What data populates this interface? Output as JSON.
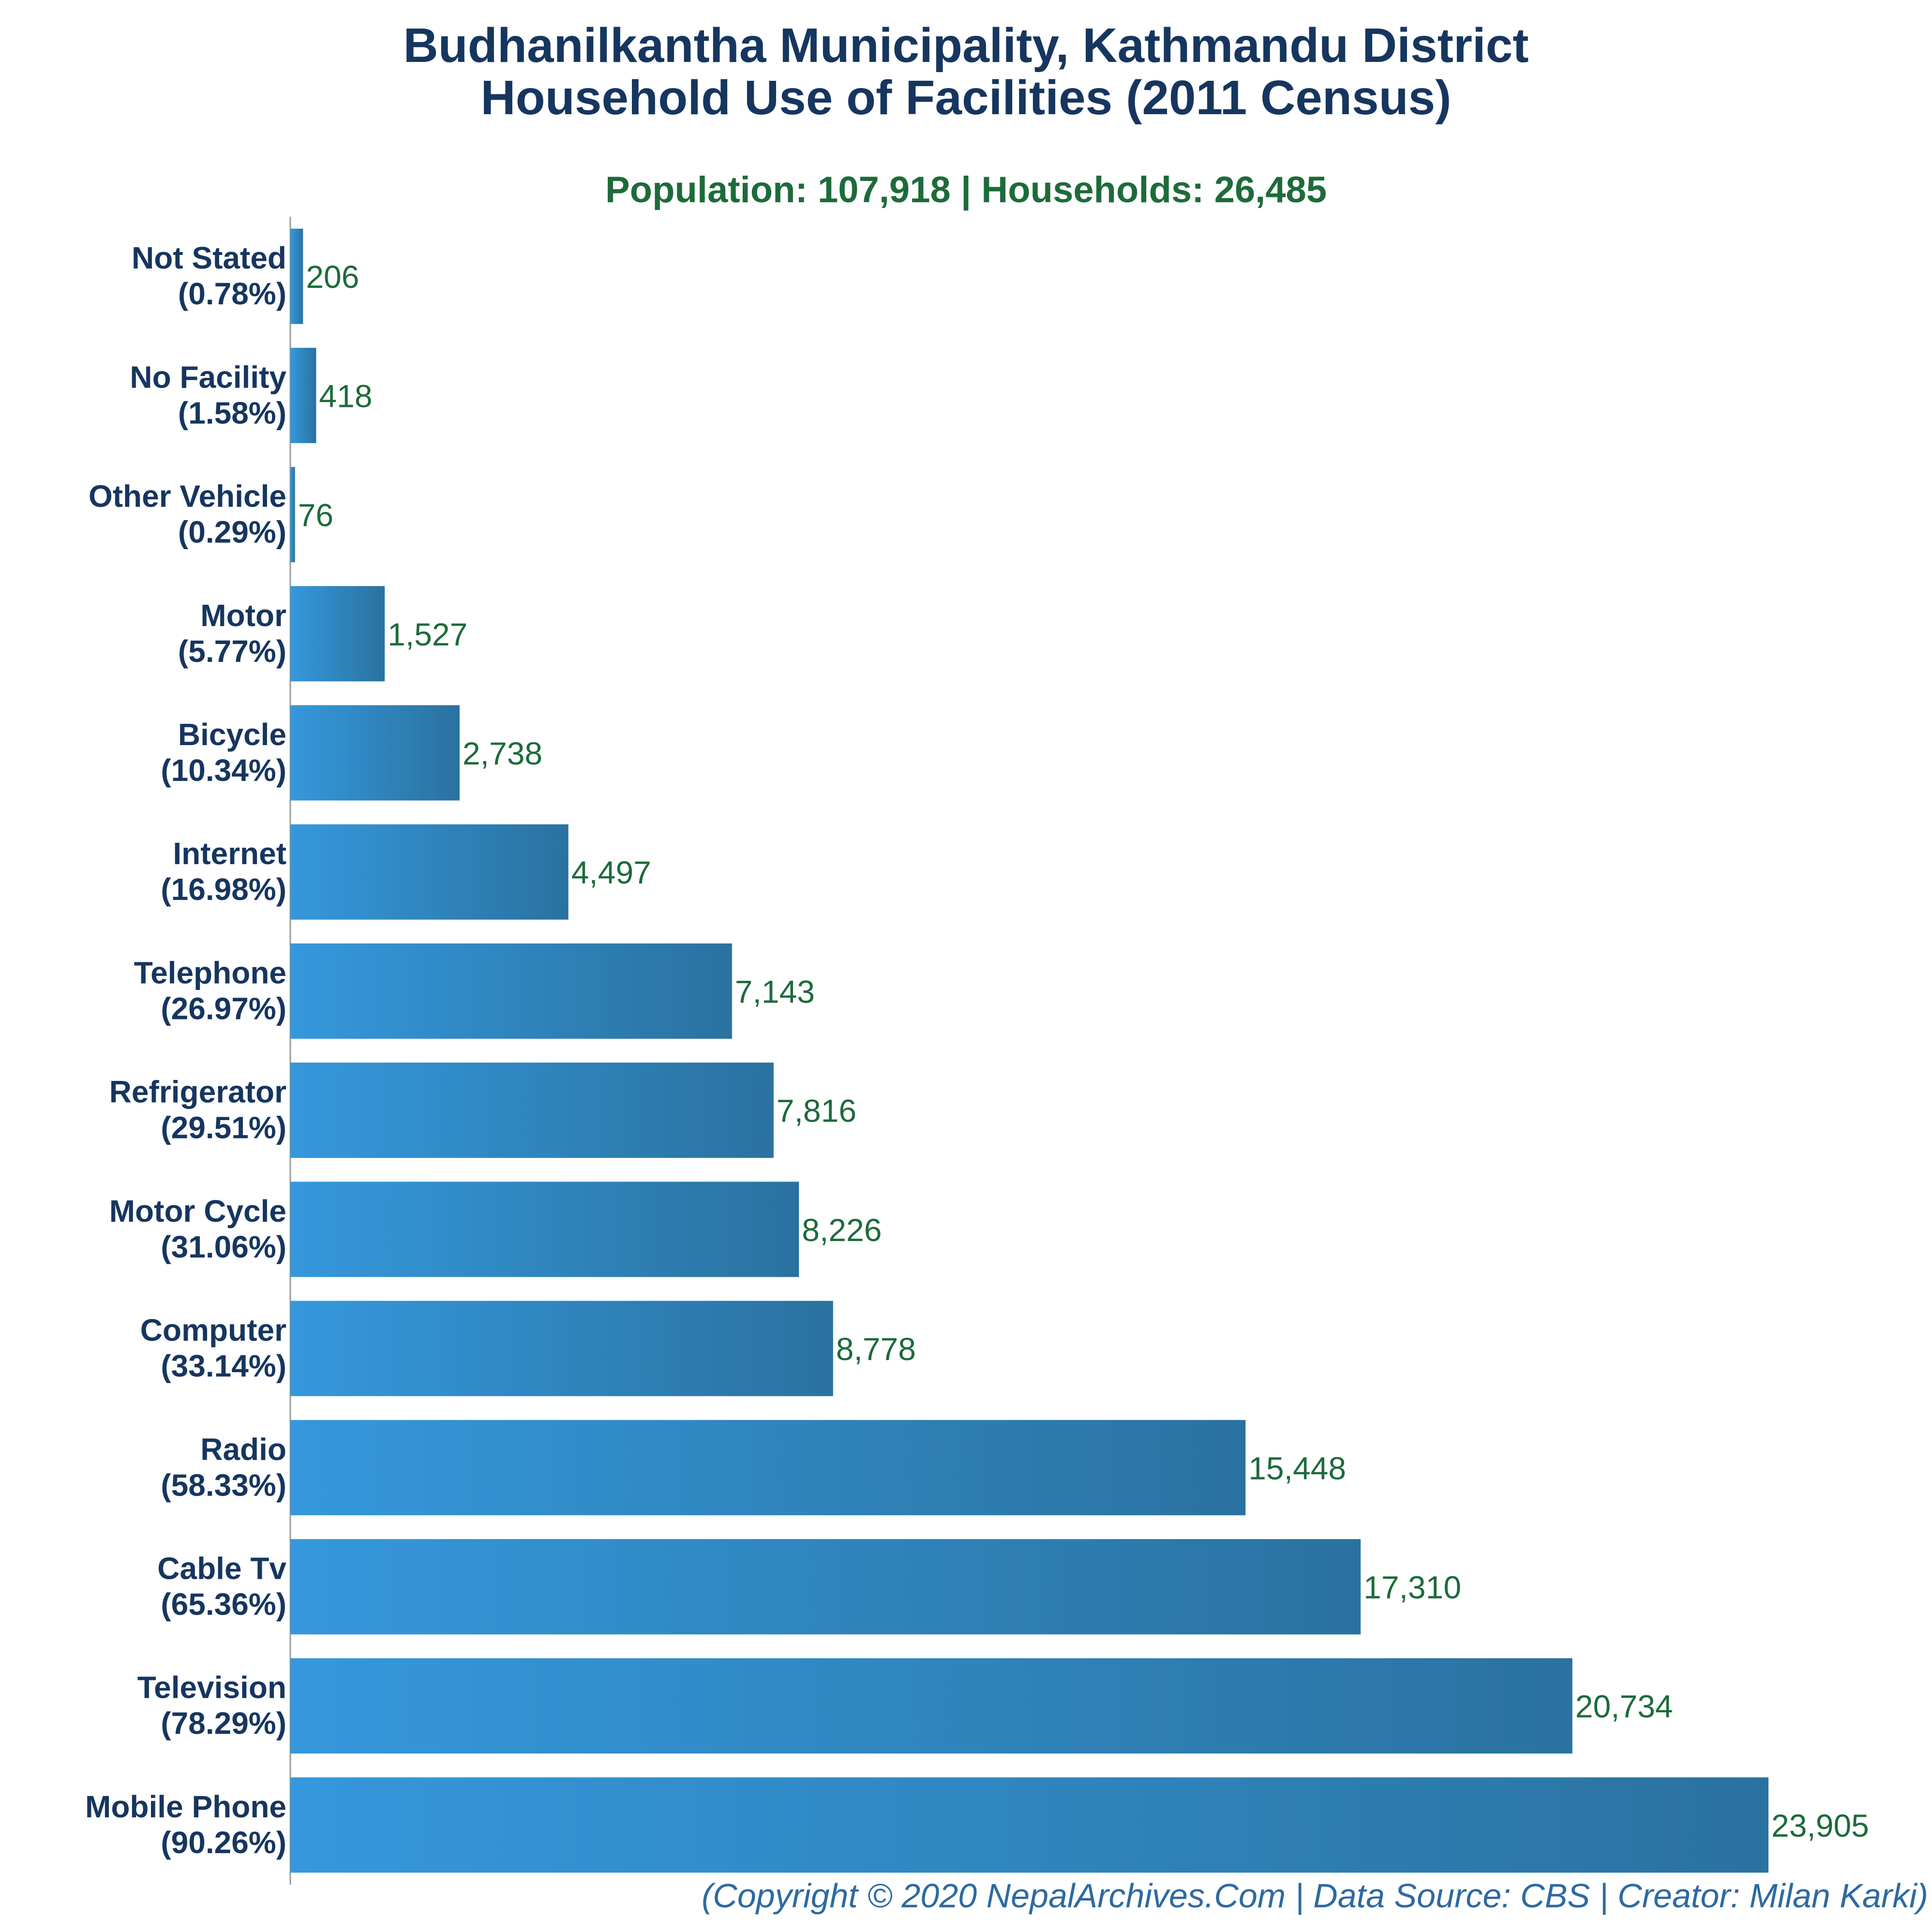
{
  "colors": {
    "title": "#16365f",
    "subtitle": "#1d6b3a",
    "bar_start": "#3598dc",
    "bar_end": "#2a72a0",
    "value_label": "#1d6b3a",
    "footer": "#2d6aa1",
    "axis": "#999999"
  },
  "title_line1": "Budhanilkantha Municipality, Kathmandu District",
  "title_line2": "Household Use of Facilities (2011 Census)",
  "subtitle": "Population: 107,918 | Households: 26,485",
  "footer": "(Copyright © 2020 NepalArchives.Com | Data Source: CBS | Creator: Milan Karki)",
  "chart_data": {
    "type": "bar",
    "orientation": "horizontal",
    "title": "Budhanilkantha Municipality, Kathmandu District Household Use of Facilities (2011 Census)",
    "subtitle": "Population: 107,918 | Households: 26,485",
    "xlabel": "",
    "ylabel": "",
    "grid": false,
    "legend": "none",
    "xlim": [
      0,
      26485
    ],
    "categories": [
      "Not Stated",
      "No Facility",
      "Other Vehicle",
      "Motor",
      "Bicycle",
      "Internet",
      "Telephone",
      "Refrigerator",
      "Motor Cycle",
      "Computer",
      "Radio",
      "Cable Tv",
      "Television",
      "Mobile Phone"
    ],
    "percent_labels": [
      "(0.78%)",
      "(1.58%)",
      "(0.29%)",
      "(5.77%)",
      "(10.34%)",
      "(16.98%)",
      "(26.97%)",
      "(29.51%)",
      "(31.06%)",
      "(33.14%)",
      "(58.33%)",
      "(65.36%)",
      "(78.29%)",
      "(90.26%)"
    ],
    "values": [
      206,
      418,
      76,
      1527,
      2738,
      4497,
      7143,
      7816,
      8226,
      8778,
      15448,
      17310,
      20734,
      23905
    ],
    "value_labels": [
      "206",
      "418",
      "76",
      "1,527",
      "2,738",
      "4,497",
      "7,143",
      "7,816",
      "8,226",
      "8,778",
      "15,448",
      "17,310",
      "20,734",
      "23,905"
    ]
  }
}
